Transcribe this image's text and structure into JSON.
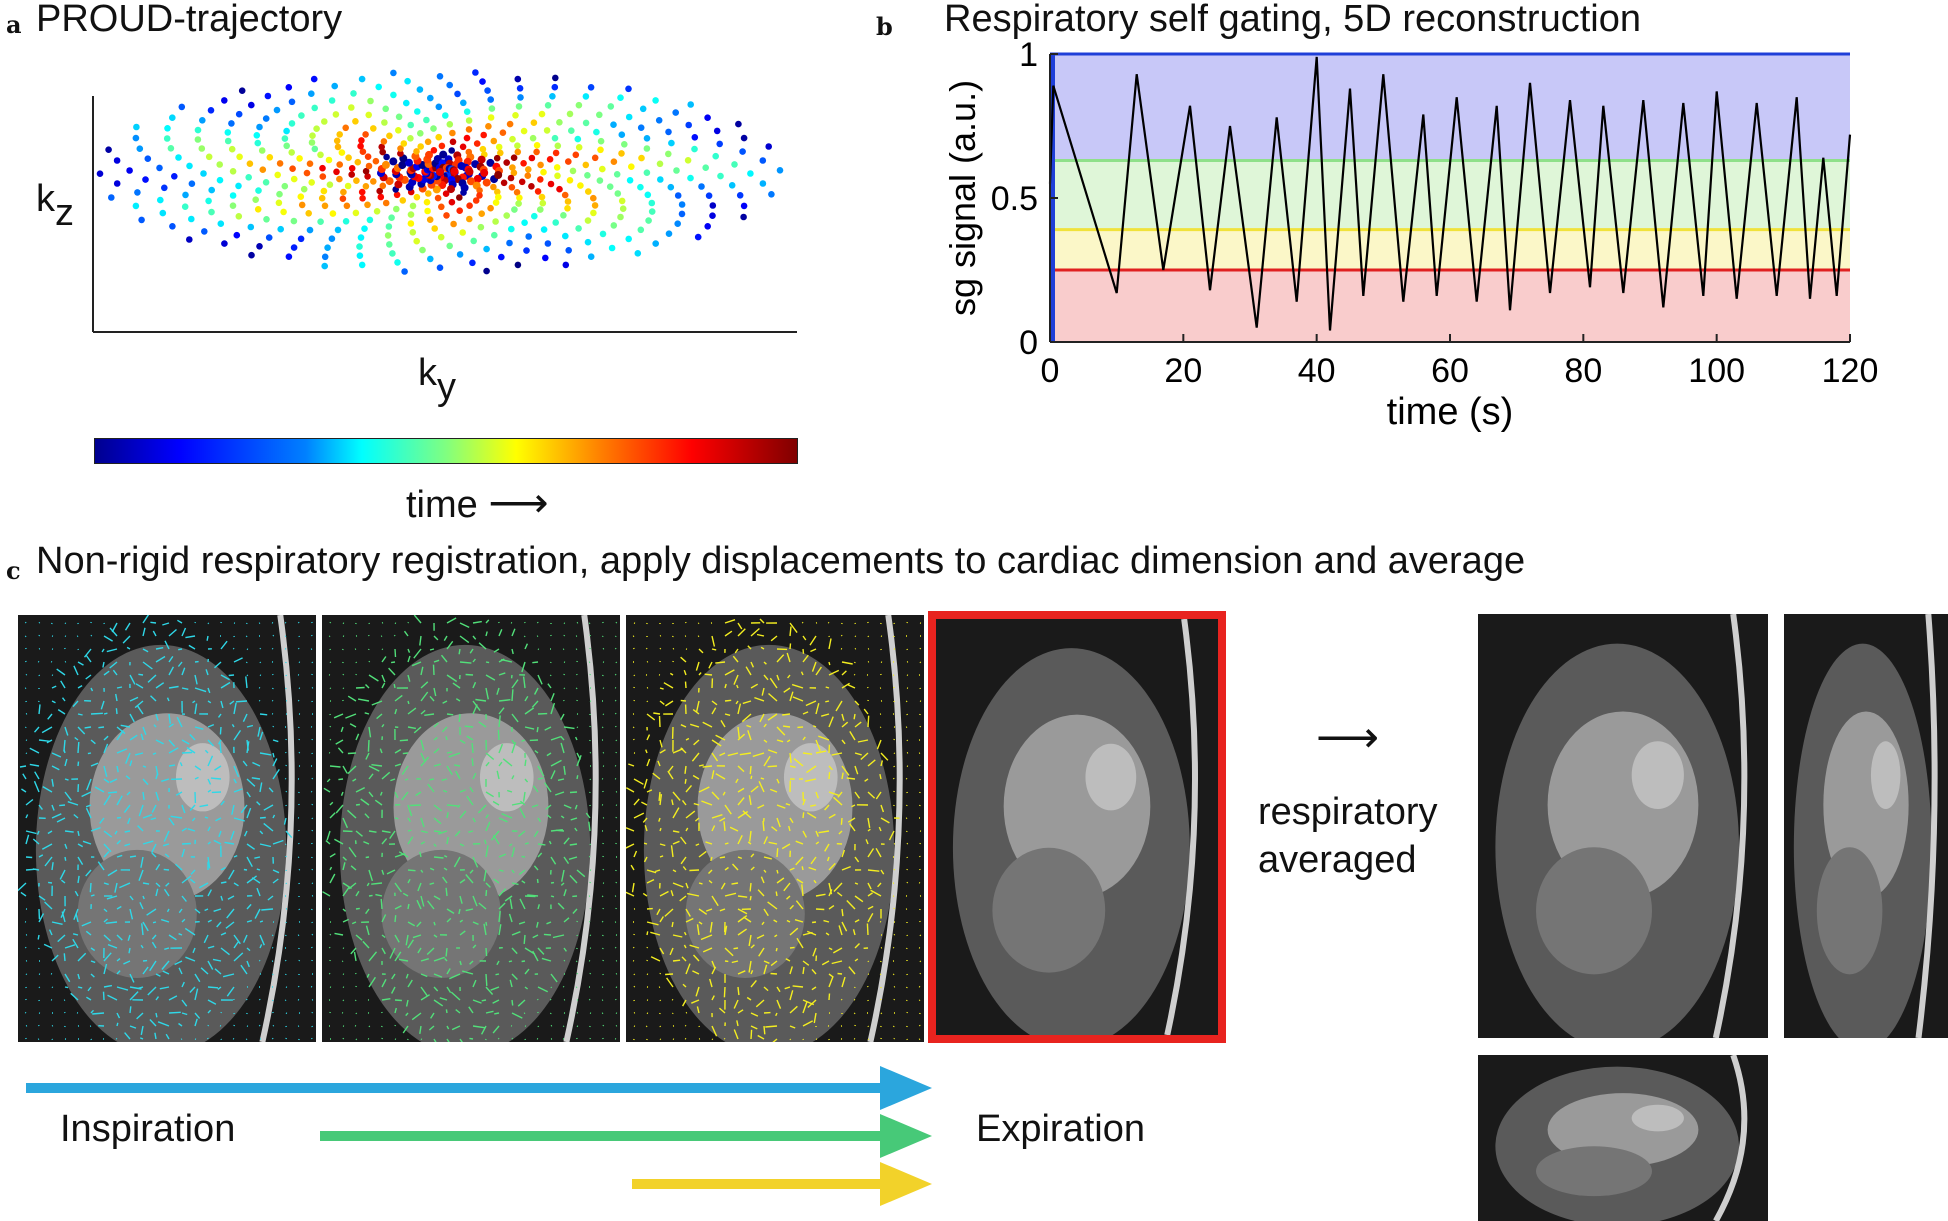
{
  "panel_a": {
    "label": "a",
    "title": "PROUD-trajectory",
    "axis_kz": "k",
    "axis_kz_sub": "z",
    "axis_ky": "k",
    "axis_ky_sub": "y",
    "colorbar_label": "time",
    "colorbar_arrow": "⟶"
  },
  "panel_b": {
    "label": "b",
    "title": "Respiratory self gating, 5D reconstruction"
  },
  "panel_c": {
    "label": "c",
    "title": "Non-rigid respiratory registration, apply displacements to cardiac dimension and average",
    "arrow_symbol": "⟶",
    "averaged_line1": "respiratory",
    "averaged_line2": "averaged",
    "inspiration": "Inspiration",
    "expiration": "Expiration",
    "vector_colors": [
      "#2fd8e8",
      "#52e07a",
      "#f4ee20"
    ],
    "arrow_colors": [
      "#2ba6dd",
      "#47c978",
      "#f2d22a"
    ],
    "highlight_color": "#e8231f"
  },
  "chart_data": {
    "type": "line",
    "title": "Respiratory self gating, 5D reconstruction",
    "xlabel": "time (s)",
    "ylabel": "sg signal (a.u.)",
    "xlim": [
      0,
      120
    ],
    "ylim": [
      0,
      1
    ],
    "xticks": [
      0,
      20,
      40,
      60,
      80,
      100,
      120
    ],
    "yticks": [
      0,
      0.5,
      1
    ],
    "xtick_labels": [
      "0",
      "20",
      "40",
      "60",
      "80",
      "100",
      "120"
    ],
    "ytick_labels": [
      "0",
      "0.5",
      "1"
    ],
    "bins": [
      {
        "name": "bin1",
        "from": 0.63,
        "to": 1.0,
        "color": "#c8c8f8",
        "line": "#1f3fd8"
      },
      {
        "name": "bin2",
        "from": 0.39,
        "to": 0.63,
        "color": "#dff6d8",
        "line": "#8fe08a"
      },
      {
        "name": "bin3",
        "from": 0.25,
        "to": 0.39,
        "color": "#fbf7c8",
        "line": "#f0e23a"
      },
      {
        "name": "bin4",
        "from": 0.0,
        "to": 0.25,
        "color": "#f9cccc",
        "line": "#e02020"
      }
    ],
    "peak_times": [
      0.5,
      13,
      21,
      27,
      34,
      40,
      45,
      50,
      56,
      61,
      67,
      72,
      78,
      83,
      89,
      95,
      100,
      106,
      112,
      116,
      120
    ],
    "peak_values": [
      0.89,
      0.93,
      0.82,
      0.75,
      0.78,
      0.99,
      0.88,
      0.93,
      0.79,
      0.85,
      0.82,
      0.9,
      0.84,
      0.82,
      0.84,
      0.83,
      0.87,
      0.83,
      0.85,
      0.64,
      0.72
    ],
    "trough_times": [
      10,
      17,
      24,
      31,
      37,
      42,
      47,
      53,
      58,
      64,
      69,
      75,
      81,
      86,
      92,
      98,
      103,
      109,
      114,
      118
    ],
    "trough_values": [
      0.17,
      0.25,
      0.18,
      0.05,
      0.14,
      0.04,
      0.16,
      0.14,
      0.16,
      0.14,
      0.11,
      0.17,
      0.19,
      0.17,
      0.12,
      0.16,
      0.15,
      0.16,
      0.15,
      0.16
    ]
  }
}
